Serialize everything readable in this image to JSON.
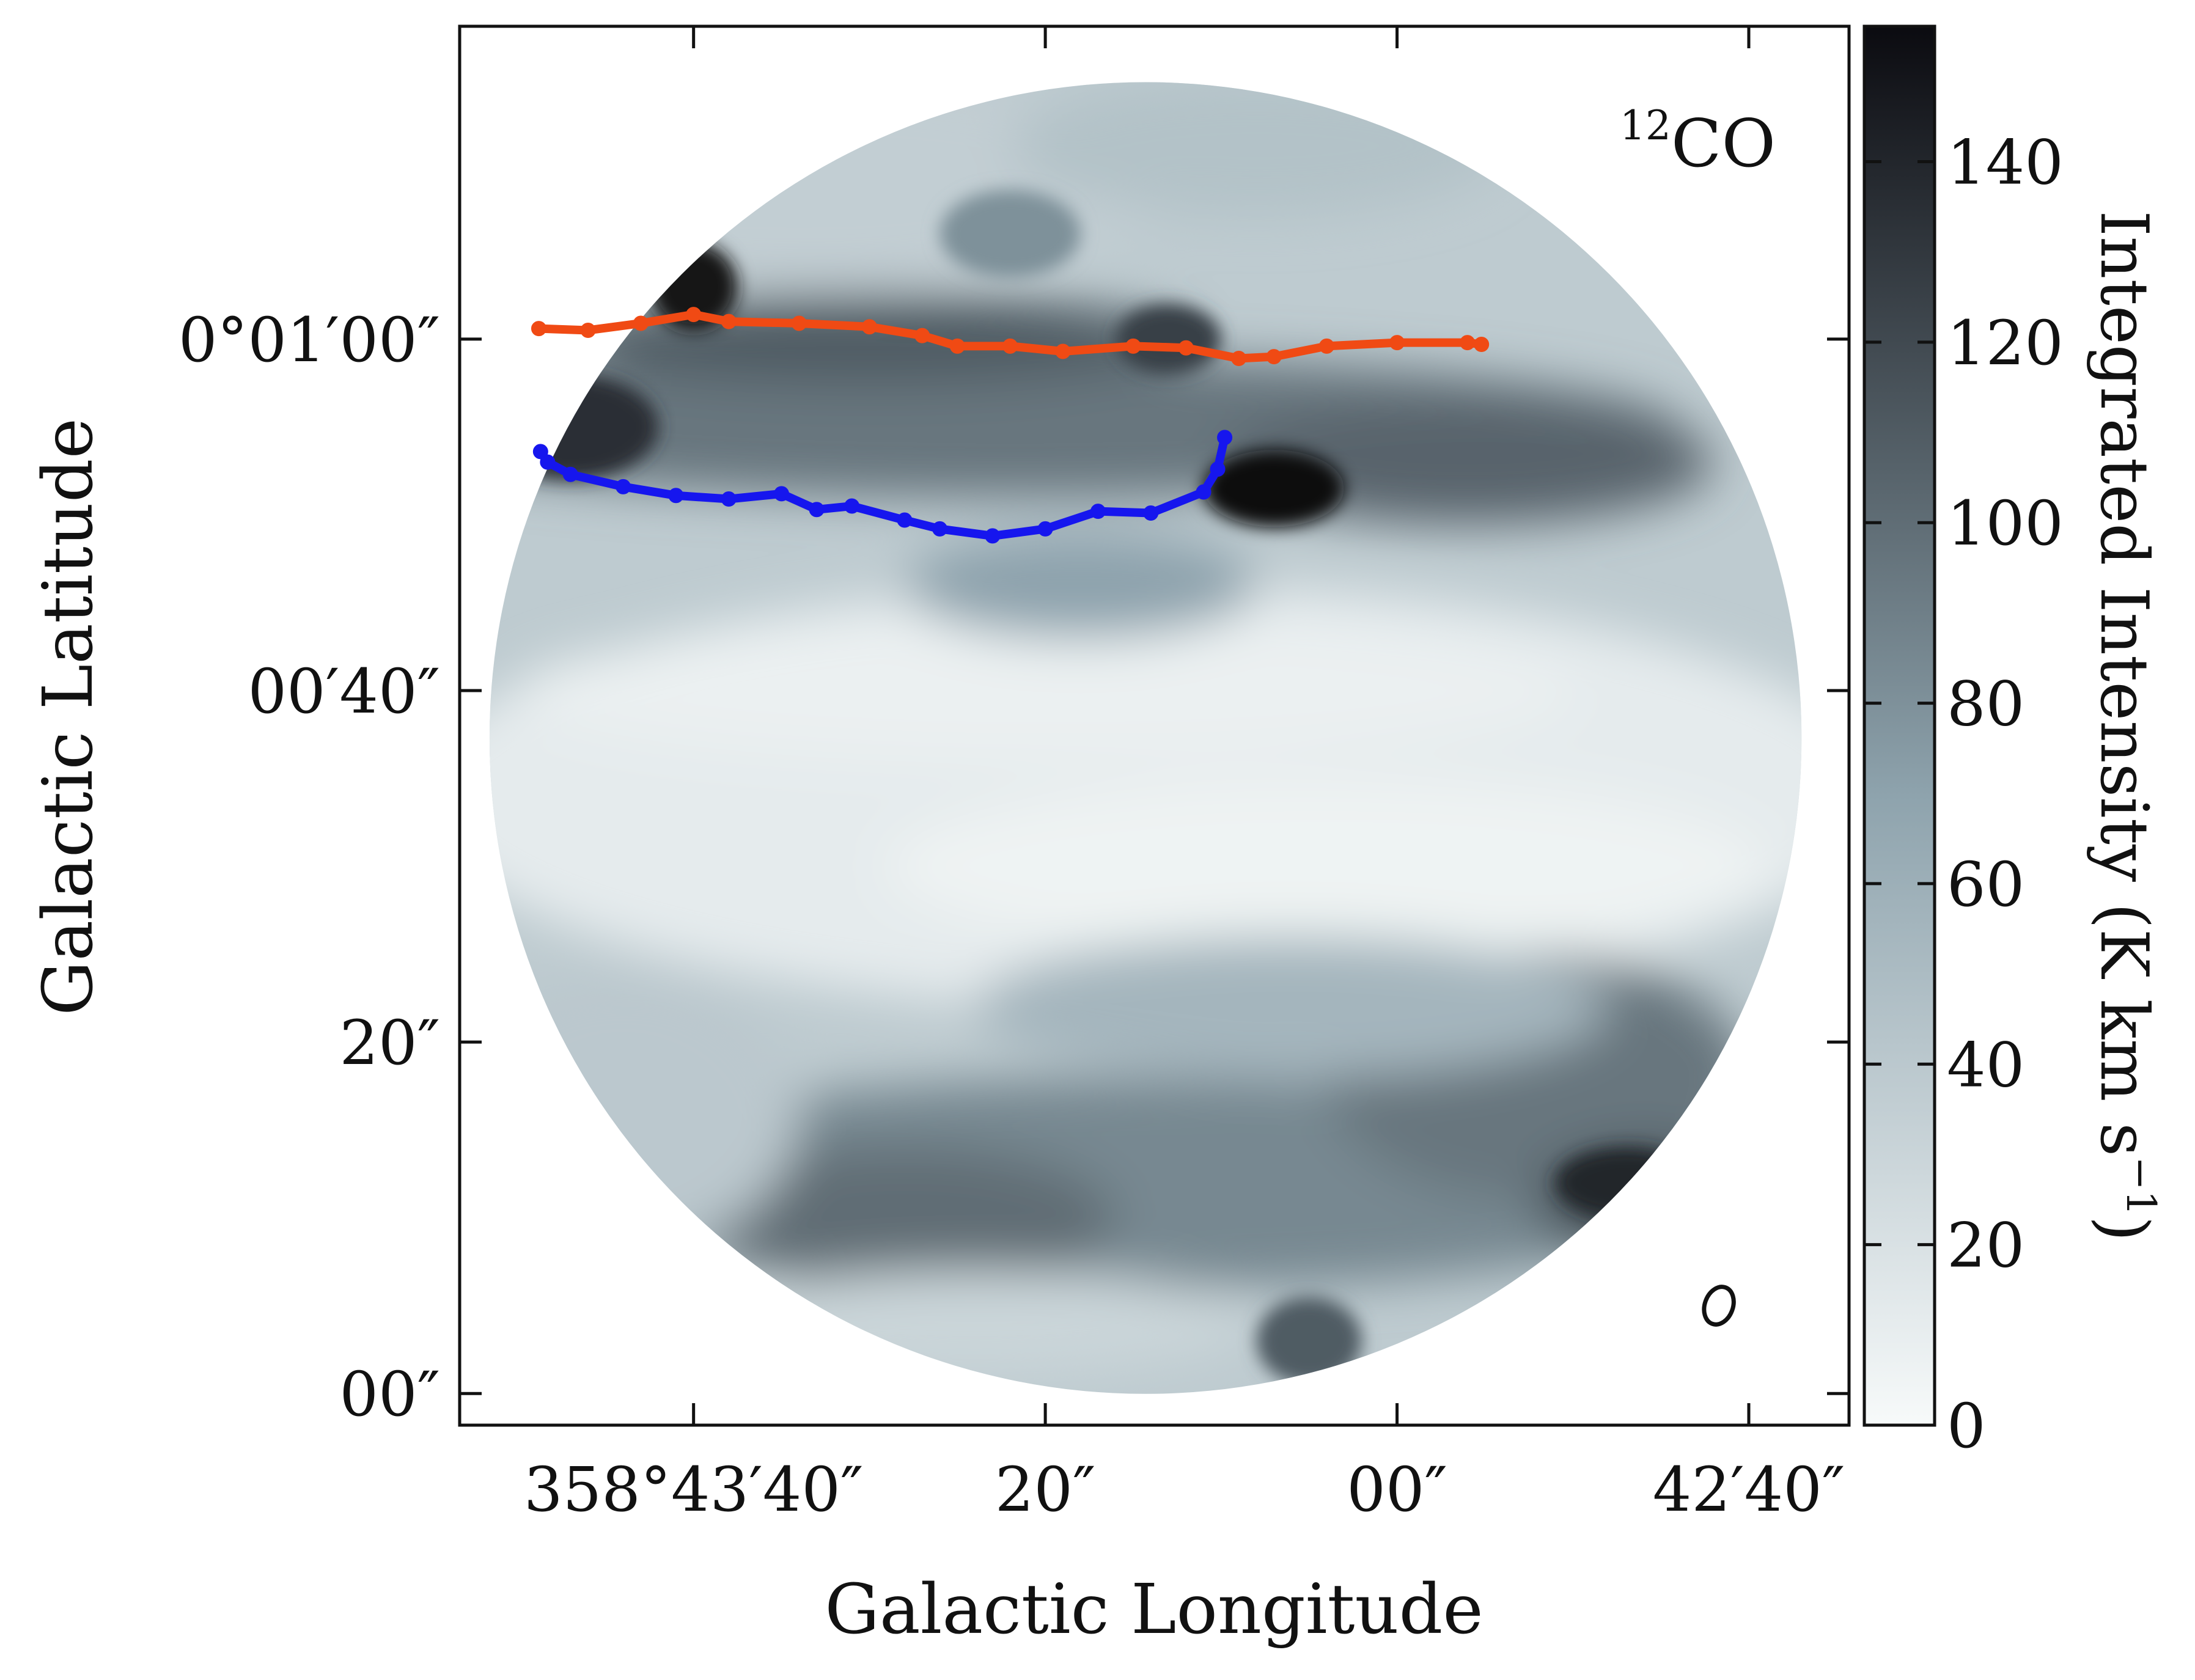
{
  "chart_data": {
    "type": "heatmap",
    "title": "",
    "map_label": "12CO",
    "map_label_sup": "12",
    "map_label_main": "CO",
    "xlabel": "Galactic Longitude",
    "ylabel": "Galactic Latitude",
    "x_ticks": [
      {
        "label": "358°43′40″",
        "value_arcsec": 40
      },
      {
        "label": "20″",
        "value_arcsec": 20
      },
      {
        "label": "00″",
        "value_arcsec": 0
      },
      {
        "label": "42′40″",
        "value_arcsec": -20
      }
    ],
    "y_ticks": [
      {
        "label": "0°01′00″",
        "value_arcsec": 60
      },
      {
        "label": "00′40″",
        "value_arcsec": 40
      },
      {
        "label": "20″",
        "value_arcsec": 20
      },
      {
        "label": "00″",
        "value_arcsec": 0
      }
    ],
    "xlim_arcsec": [
      53.3,
      -25.7
    ],
    "ylim_arcsec": [
      -1.8,
      77.8
    ],
    "colorbar": {
      "label": "Integrated Intensity (K km s⁻¹)",
      "label_main": "Integrated Intensity (K km s",
      "label_sup": "−1",
      "label_end": ")",
      "min": 0,
      "max": 155,
      "ticks": [
        0,
        20,
        40,
        60,
        80,
        100,
        120,
        140
      ],
      "colormap": "bone_r",
      "color_low": "#f7fafa",
      "color_mid": "#8ea3ad",
      "color_high": "#0b0b10"
    },
    "field_of_view": {
      "shape": "circle",
      "center_arcsec": [
        14.3,
        37.3
      ],
      "radius_arcsec": 37.3
    },
    "beam": {
      "center_arcsec": [
        -18.3,
        5.0
      ],
      "major_arcsec": 2.2,
      "minor_arcsec": 1.6
    },
    "series": [
      {
        "color": "#f04a14",
        "points": [
          [
            48.8,
            60.6
          ],
          [
            46.0,
            60.5
          ],
          [
            43.0,
            60.9
          ],
          [
            40.0,
            61.4
          ],
          [
            38.0,
            61.0
          ],
          [
            34.0,
            60.9
          ],
          [
            30.0,
            60.7
          ],
          [
            27.0,
            60.2
          ],
          [
            25.0,
            59.6
          ],
          [
            22.0,
            59.6
          ],
          [
            19.0,
            59.3
          ],
          [
            15.0,
            59.6
          ],
          [
            12.0,
            59.5
          ],
          [
            9.0,
            58.9
          ],
          [
            7.0,
            59.0
          ],
          [
            4.0,
            59.6
          ],
          [
            0.0,
            59.8
          ],
          [
            -4.0,
            59.8
          ],
          [
            -4.8,
            59.7
          ]
        ]
      },
      {
        "color": "#1616ee",
        "points": [
          [
            48.7,
            53.6
          ],
          [
            48.3,
            53.0
          ],
          [
            47.0,
            52.3
          ],
          [
            44.0,
            51.6
          ],
          [
            41.0,
            51.1
          ],
          [
            38.0,
            50.9
          ],
          [
            35.0,
            51.2
          ],
          [
            33.0,
            50.3
          ],
          [
            31.0,
            50.5
          ],
          [
            28.0,
            49.7
          ],
          [
            26.0,
            49.2
          ],
          [
            23.0,
            48.8
          ],
          [
            20.0,
            49.2
          ],
          [
            17.0,
            50.2
          ],
          [
            14.0,
            50.1
          ],
          [
            11.0,
            51.3
          ],
          [
            10.2,
            52.6
          ],
          [
            9.8,
            54.4
          ]
        ]
      }
    ]
  }
}
